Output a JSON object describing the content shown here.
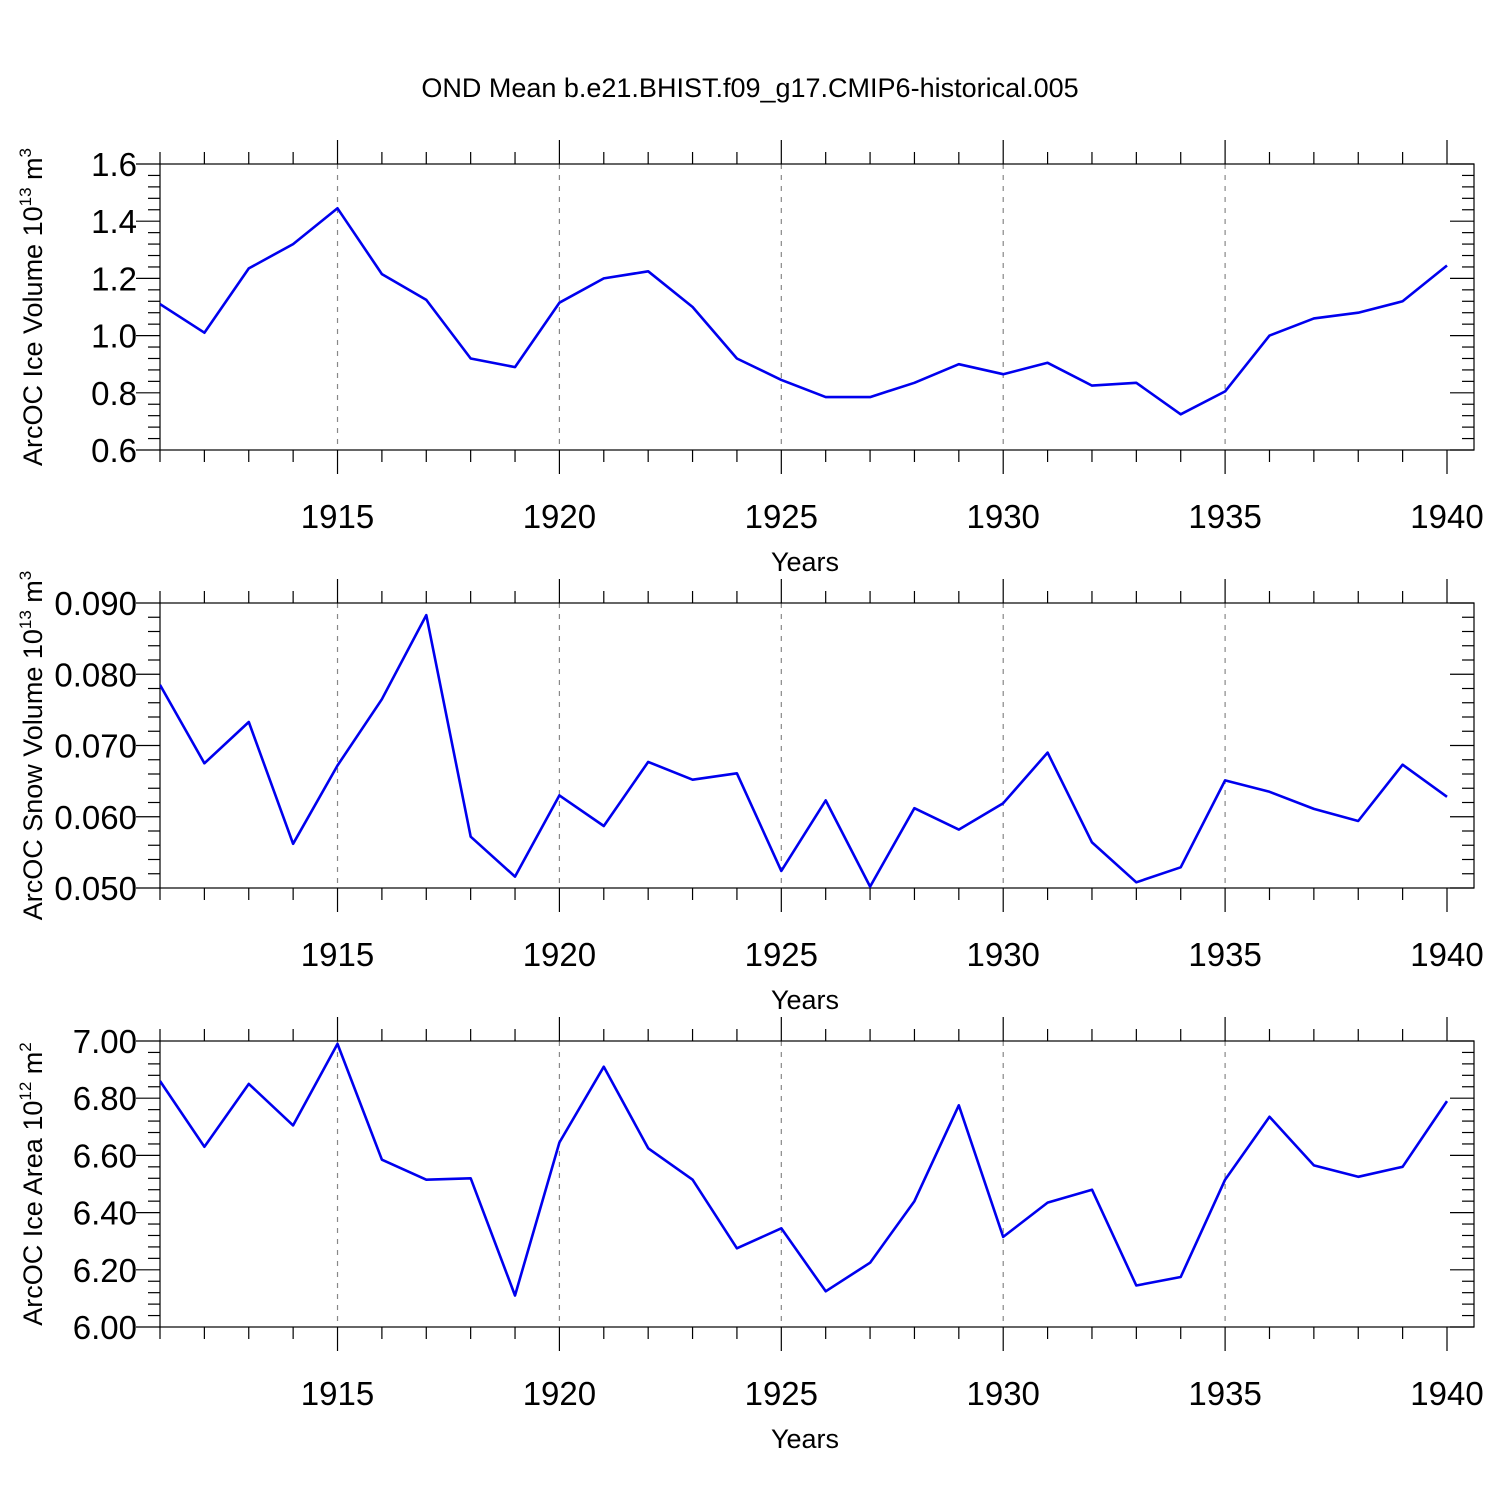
{
  "chart_data": [
    {
      "type": "line",
      "title": "OND Mean b.e21.BHIST.f09_g17.CMIP6-historical.005",
      "xlabel": "Years",
      "ylabel_base": "ArcOC Ice Volume 10",
      "ylabel_exp": "13",
      "ylabel_unit": " m",
      "ylabel_unit_exp": "3",
      "xlim": [
        1911,
        1940
      ],
      "ylim": [
        0.6,
        1.6
      ],
      "x_ticks": [
        "1915",
        "1920",
        "1925",
        "1930",
        "1935",
        "1940"
      ],
      "y_ticks": [
        "0.6",
        "0.8",
        "1.0",
        "1.2",
        "1.4",
        "1.6"
      ],
      "grid": "x-dashed",
      "line_color": "#0000ee",
      "x": [
        1911,
        1912,
        1913,
        1914,
        1915,
        1916,
        1917,
        1918,
        1919,
        1920,
        1921,
        1922,
        1923,
        1924,
        1925,
        1926,
        1927,
        1928,
        1929,
        1930,
        1931,
        1932,
        1933,
        1934,
        1935,
        1936,
        1937,
        1938,
        1939,
        1940
      ],
      "values": [
        1.11,
        1.01,
        1.235,
        1.32,
        1.445,
        1.215,
        1.125,
        0.92,
        0.89,
        1.115,
        1.2,
        1.225,
        1.1,
        0.92,
        0.845,
        0.785,
        0.785,
        0.835,
        0.9,
        0.865,
        0.905,
        0.825,
        0.835,
        0.725,
        0.805,
        1.0,
        1.06,
        1.08,
        1.12,
        1.245
      ]
    },
    {
      "type": "line",
      "xlabel": "Years",
      "ylabel_base": "ArcOC Snow Volume 10",
      "ylabel_exp": "13",
      "ylabel_unit": " m",
      "ylabel_unit_exp": "3",
      "xlim": [
        1911,
        1940
      ],
      "ylim": [
        0.05,
        0.09
      ],
      "x_ticks": [
        "1915",
        "1920",
        "1925",
        "1930",
        "1935",
        "1940"
      ],
      "y_ticks": [
        "0.050",
        "0.060",
        "0.070",
        "0.080",
        "0.090"
      ],
      "grid": "x-dashed",
      "line_color": "#0000ee",
      "x": [
        1911,
        1912,
        1913,
        1914,
        1915,
        1916,
        1917,
        1918,
        1919,
        1920,
        1921,
        1922,
        1923,
        1924,
        1925,
        1926,
        1927,
        1928,
        1929,
        1930,
        1931,
        1932,
        1933,
        1934,
        1935,
        1936,
        1937,
        1938,
        1939,
        1940
      ],
      "values": [
        0.0785,
        0.0675,
        0.0733,
        0.0562,
        0.0672,
        0.0765,
        0.0883,
        0.0572,
        0.0516,
        0.063,
        0.0587,
        0.0677,
        0.0652,
        0.0661,
        0.0524,
        0.0623,
        0.0502,
        0.0612,
        0.0582,
        0.0619,
        0.069,
        0.0564,
        0.0508,
        0.0529,
        0.0651,
        0.0635,
        0.0611,
        0.0594,
        0.0673,
        0.0628
      ]
    },
    {
      "type": "line",
      "xlabel": "Years",
      "ylabel_base": "ArcOC Ice Area 10",
      "ylabel_exp": "12",
      "ylabel_unit": " m",
      "ylabel_unit_exp": "2",
      "xlim": [
        1911,
        1940
      ],
      "ylim": [
        6.0,
        7.0
      ],
      "x_ticks": [
        "1915",
        "1920",
        "1925",
        "1930",
        "1935",
        "1940"
      ],
      "y_ticks": [
        "6.00",
        "6.20",
        "6.40",
        "6.60",
        "6.80",
        "7.00"
      ],
      "grid": "x-dashed",
      "line_color": "#0000ee",
      "x": [
        1911,
        1912,
        1913,
        1914,
        1915,
        1916,
        1917,
        1918,
        1919,
        1920,
        1921,
        1922,
        1923,
        1924,
        1925,
        1926,
        1927,
        1928,
        1929,
        1930,
        1931,
        1932,
        1933,
        1934,
        1935,
        1936,
        1937,
        1938,
        1939,
        1940
      ],
      "values": [
        6.86,
        6.63,
        6.85,
        6.705,
        6.99,
        6.585,
        6.515,
        6.52,
        6.11,
        6.645,
        6.91,
        6.625,
        6.515,
        6.275,
        6.345,
        6.125,
        6.225,
        6.44,
        6.775,
        6.315,
        6.435,
        6.48,
        6.145,
        6.175,
        6.515,
        6.735,
        6.565,
        6.525,
        6.56,
        6.79
      ]
    }
  ]
}
